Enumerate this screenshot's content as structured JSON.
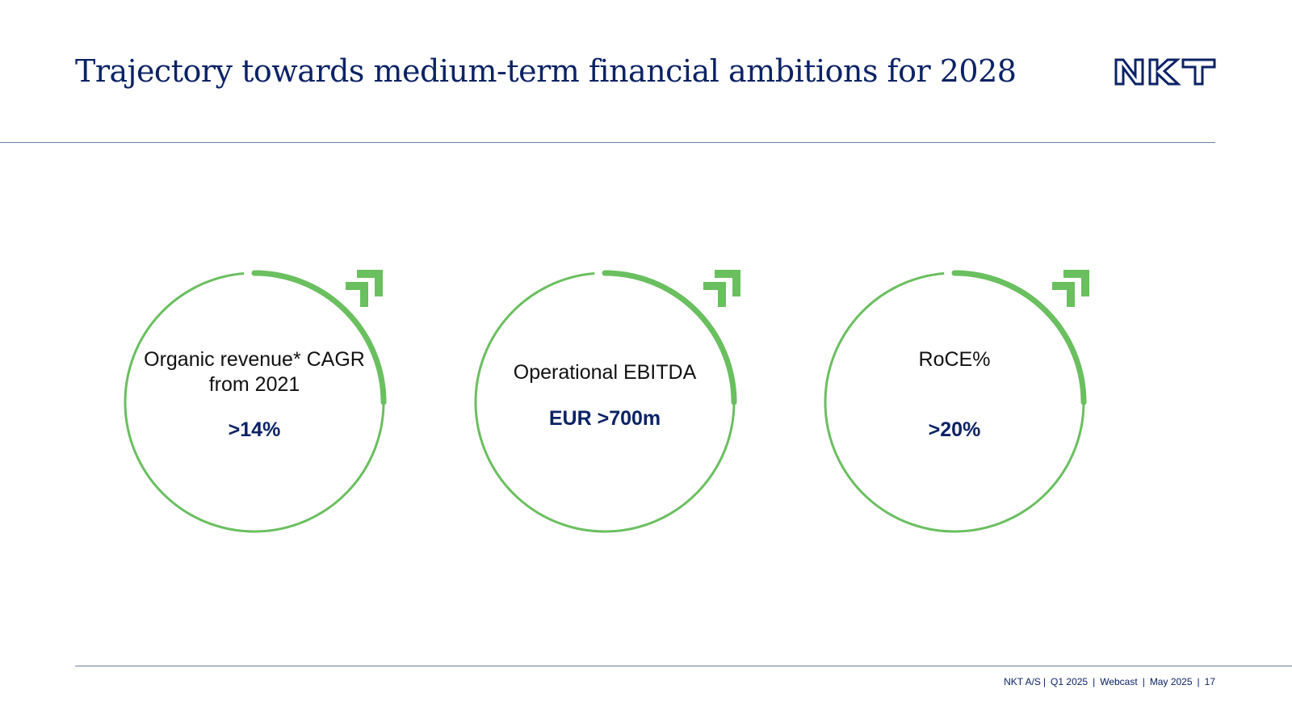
{
  "slide": {
    "title": "Trajectory towards medium-term financial ambitions for 2028",
    "logo_text": "NKT"
  },
  "metrics": [
    {
      "label_line1": "Organic revenue* CAGR",
      "label_line2": "from 2021",
      "value": ">14%",
      "icon": "up-right-arrow-icon"
    },
    {
      "label_line1": "Operational EBITDA",
      "label_line2": "",
      "value": "EUR >700m",
      "icon": "up-right-arrow-icon"
    },
    {
      "label_line1": "RoCE%",
      "label_line2": "",
      "value": ">20%",
      "icon": "up-right-arrow-icon"
    }
  ],
  "footer": {
    "company": "NKT A/S",
    "quarter": "Q1 2025",
    "event": "Webcast",
    "date": "May 2025",
    "page": "17"
  },
  "colors": {
    "navy": "#0b2265",
    "green": "#6abf5f",
    "rule": "#6b7fa3"
  }
}
